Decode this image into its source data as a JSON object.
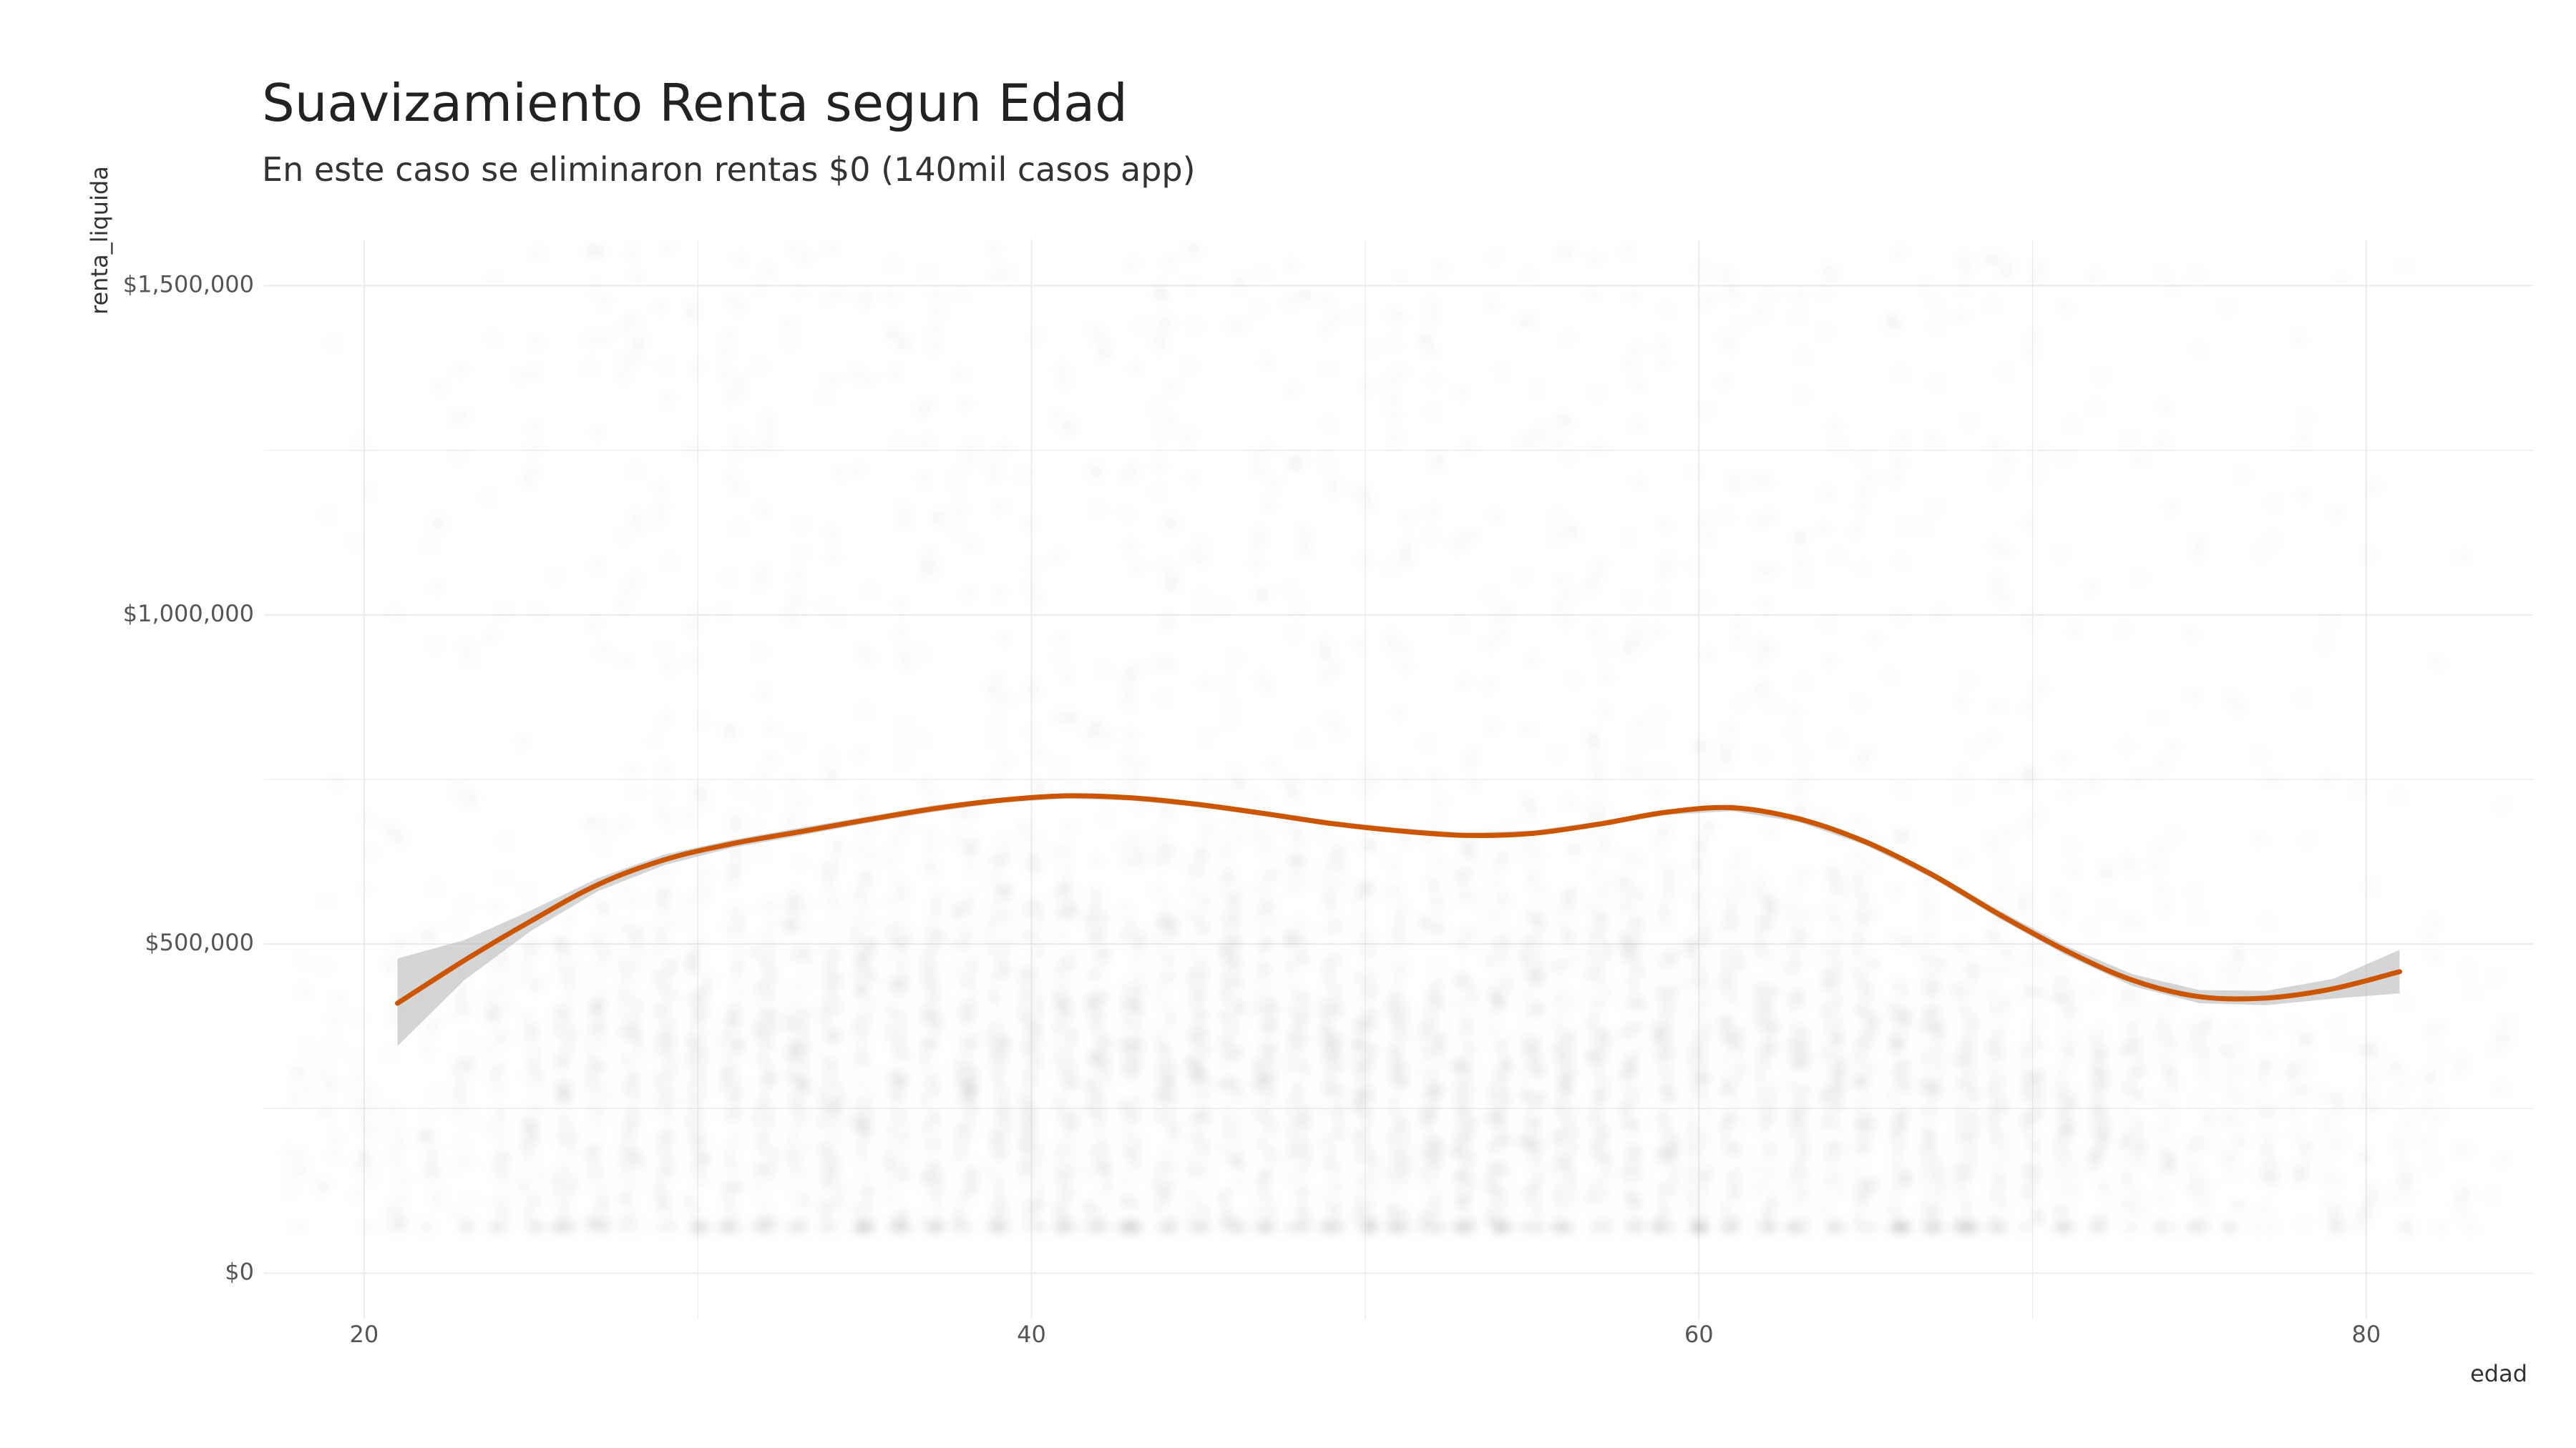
{
  "chart_data": {
    "type": "scatter",
    "title": "Suavizamiento Renta segun Edad",
    "subtitle": "En este caso se eliminaron rentas $0 (140mil casos app)",
    "xlabel": "edad",
    "ylabel": "renta_liquida",
    "xlim": [
      17,
      85
    ],
    "ylim": [
      -70000,
      1570000
    ],
    "x_ticks": [
      20,
      40,
      60,
      80
    ],
    "x_tick_labels": [
      "20",
      "40",
      "60",
      "80"
    ],
    "y_ticks": [
      0,
      500000,
      1000000,
      1500000
    ],
    "y_tick_labels": [
      "$0",
      "$500,000",
      "$1,000,000",
      "$1,500,000"
    ],
    "grid": true,
    "colors": {
      "smooth_line": "#cc5500",
      "confidence_band": "#b3b3b3",
      "points": "#9a9a9a",
      "grid": "#ebebeb"
    },
    "series": [
      {
        "type": "line",
        "x": [
          21,
          23,
          25,
          27,
          29,
          31,
          33,
          35,
          37,
          39,
          41,
          43,
          45,
          47,
          49,
          51,
          53,
          55,
          57,
          59,
          61,
          63,
          65,
          67,
          69,
          71,
          73,
          75,
          77,
          79,
          81
        ],
        "y": [
          410000,
          475000,
          535000,
          590000,
          628000,
          652000,
          670000,
          688000,
          705000,
          718000,
          725000,
          722000,
          712000,
          698000,
          683000,
          672000,
          665000,
          668000,
          682000,
          700000,
          707000,
          690000,
          655000,
          605000,
          545000,
          490000,
          445000,
          420000,
          418000,
          432000,
          458000
        ],
        "ci_lower": [
          345000,
          445000,
          520000,
          580000,
          620000,
          646000,
          664000,
          683000,
          700000,
          714000,
          721000,
          718000,
          708000,
          694000,
          679000,
          668000,
          661000,
          664000,
          678000,
          696000,
          702000,
          685000,
          650000,
          600000,
          539000,
          483000,
          436000,
          410000,
          407000,
          417000,
          425000
        ],
        "ci_upper": [
          478000,
          506000,
          551000,
          600000,
          636000,
          658000,
          676000,
          693000,
          710000,
          722000,
          729000,
          726000,
          716000,
          702000,
          687000,
          676000,
          669000,
          672000,
          686000,
          704000,
          712000,
          695000,
          660000,
          610000,
          551000,
          497000,
          454000,
          430000,
          429000,
          447000,
          491000
        ]
      }
    ]
  }
}
